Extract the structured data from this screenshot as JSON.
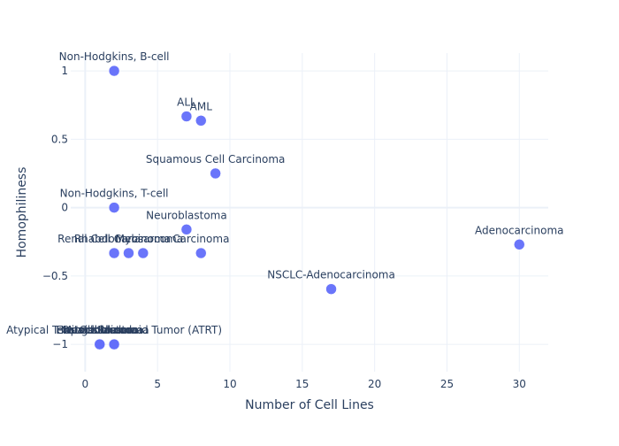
{
  "chart_data": {
    "type": "scatter",
    "title": "",
    "xlabel": "Number of Cell Lines",
    "ylabel": "Homophiliness",
    "xlim": [
      -1,
      32
    ],
    "ylim": [
      -1.2,
      1.13
    ],
    "x_ticks": [
      0,
      5,
      10,
      15,
      20,
      25,
      30
    ],
    "y_ticks": [
      {
        "value": -1,
        "label": "−1"
      },
      {
        "value": -0.5,
        "label": "−0.5"
      },
      {
        "value": 0,
        "label": "0"
      },
      {
        "value": 0.5,
        "label": "0.5"
      },
      {
        "value": 1,
        "label": "1"
      }
    ],
    "grid": true,
    "marker_color": "#636efa",
    "points": [
      {
        "x": 2,
        "y": 1,
        "label": "Non-Hodgkins, B-cell"
      },
      {
        "x": 7,
        "y": 0.667,
        "label": "ALL"
      },
      {
        "x": 8,
        "y": 0.636,
        "label": "AML"
      },
      {
        "x": 9,
        "y": 0.25,
        "label": "Squamous Cell Carcinoma"
      },
      {
        "x": 2,
        "y": 0,
        "label": "Non-Hodgkins, T-cell"
      },
      {
        "x": 7,
        "y": -0.16,
        "label": "Neuroblastoma"
      },
      {
        "x": 30,
        "y": -0.27,
        "label": "Adenocarcinoma"
      },
      {
        "x": 2,
        "y": -0.333,
        "label": "Renal Cell Carcinoma"
      },
      {
        "x": 3,
        "y": -0.333,
        "label": "Rhabdomyosarcoma"
      },
      {
        "x": 4,
        "y": -0.333,
        "label": "Melanoma"
      },
      {
        "x": 8,
        "y": -0.333,
        "label": "Carcinoma"
      },
      {
        "x": 17,
        "y": -0.596,
        "label": "NSCLC-Adenocarcinoma"
      },
      {
        "x": 1,
        "y": -1,
        "label": "Mesothelioma"
      },
      {
        "x": 1,
        "y": -1,
        "label": "Ewings Sarcoma"
      },
      {
        "x": 1,
        "y": -1,
        "label": "Hepatoblastoma"
      },
      {
        "x": 1,
        "y": -1,
        "label": "Osteosarcoma"
      },
      {
        "x": 2,
        "y": -1,
        "label": "Glioblastoma"
      },
      {
        "x": 2,
        "y": -1,
        "label": "Atypical Teratoid Rhabdoid Tumor (ATRT)"
      }
    ]
  }
}
